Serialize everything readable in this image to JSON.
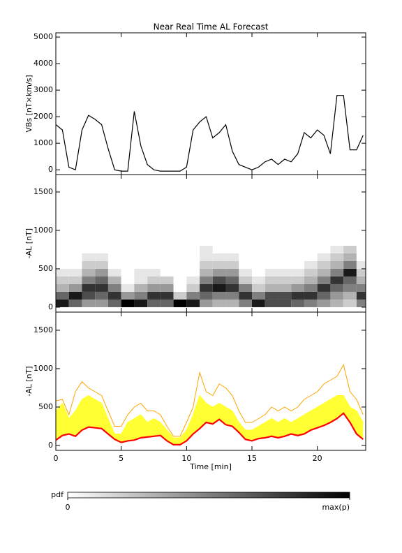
{
  "chart_data": [
    {
      "type": "line",
      "title": "Near Real Time AL Forecast",
      "ylabel": "VBs [nT×km/s]",
      "x": [
        0,
        0.5,
        1,
        1.5,
        2,
        2.5,
        3,
        3.5,
        4,
        4.5,
        5,
        5.5,
        6,
        6.5,
        7,
        7.5,
        8,
        8.5,
        9,
        9.5,
        10,
        10.5,
        11,
        11.5,
        12,
        12.5,
        13,
        13.5,
        14,
        14.5,
        15,
        15.5,
        16,
        16.5,
        17,
        17.5,
        18,
        18.5,
        19,
        19.5,
        20,
        20.5,
        21,
        21.5,
        22,
        22.5,
        23,
        23.5
      ],
      "series": [
        {
          "color": "#000000",
          "values": [
            1700,
            1500,
            100,
            0,
            1500,
            2050,
            1900,
            1700,
            800,
            0,
            -50,
            -50,
            2200,
            900,
            200,
            0,
            -50,
            -50,
            -50,
            -50,
            100,
            1500,
            1800,
            2000,
            1200,
            1400,
            1700,
            700,
            200,
            100,
            0,
            100,
            300,
            400,
            200,
            400,
            300,
            600,
            1400,
            1200,
            1500,
            1300,
            600,
            2800,
            2800,
            750,
            750,
            1300
          ]
        }
      ],
      "xlim": [
        0,
        23.7
      ],
      "xticks": [
        0,
        5,
        10,
        15,
        20
      ],
      "ylim": [
        -180,
        5160
      ],
      "yticks": [
        0,
        1000,
        2000,
        3000,
        4000,
        5000
      ]
    },
    {
      "type": "heatmap",
      "ylabel": "-AL [nT]",
      "x_bins": [
        0,
        1,
        2,
        3,
        4,
        5,
        6,
        7,
        8,
        9,
        10,
        11,
        12,
        13,
        14,
        15,
        16,
        17,
        18,
        19,
        20,
        21,
        22,
        23,
        24
      ],
      "y_bins": [
        0,
        100,
        200,
        300,
        400,
        500,
        600,
        700,
        800
      ],
      "values": [
        [
          0.9,
          0.6,
          0.3,
          0.2,
          0.1,
          0,
          0,
          0
        ],
        [
          0.6,
          0.9,
          0.4,
          0.2,
          0.1,
          0,
          0,
          0
        ],
        [
          0.4,
          0.7,
          0.8,
          0.5,
          0.3,
          0.2,
          0.1,
          0
        ],
        [
          0.4,
          0.6,
          0.8,
          0.6,
          0.4,
          0.2,
          0.1,
          0
        ],
        [
          0.6,
          0.8,
          0.5,
          0.3,
          0.1,
          0,
          0,
          0
        ],
        [
          1,
          0.4,
          0.1,
          0,
          0,
          0,
          0,
          0
        ],
        [
          0.9,
          0.5,
          0.3,
          0.1,
          0.1,
          0,
          0,
          0
        ],
        [
          0.6,
          0.8,
          0.4,
          0.2,
          0.1,
          0,
          0,
          0
        ],
        [
          0.6,
          0.8,
          0.4,
          0.2,
          0,
          0,
          0,
          0
        ],
        [
          1,
          0.2,
          0,
          0,
          0,
          0,
          0,
          0
        ],
        [
          0.9,
          0.5,
          0.2,
          0.1,
          0,
          0,
          0,
          0
        ],
        [
          0.4,
          0.6,
          0.8,
          0.5,
          0.3,
          0.2,
          0.1,
          0.1
        ],
        [
          0.3,
          0.5,
          0.9,
          0.7,
          0.4,
          0.2,
          0.1,
          0
        ],
        [
          0.3,
          0.5,
          0.8,
          0.6,
          0.4,
          0.2,
          0.1,
          0
        ],
        [
          0.5,
          0.8,
          0.5,
          0.2,
          0.1,
          0,
          0,
          0
        ],
        [
          0.9,
          0.5,
          0.2,
          0.1,
          0,
          0,
          0,
          0
        ],
        [
          0.7,
          0.7,
          0.3,
          0.2,
          0.1,
          0,
          0,
          0
        ],
        [
          0.7,
          0.7,
          0.3,
          0.2,
          0.1,
          0,
          0,
          0
        ],
        [
          0.6,
          0.8,
          0.4,
          0.2,
          0.1,
          0,
          0,
          0
        ],
        [
          0.5,
          0.8,
          0.5,
          0.3,
          0.2,
          0.1,
          0,
          0
        ],
        [
          0.4,
          0.6,
          0.8,
          0.5,
          0.3,
          0.2,
          0.1,
          0
        ],
        [
          0.3,
          0.4,
          0.6,
          0.8,
          0.5,
          0.3,
          0.2,
          0.1
        ],
        [
          0.2,
          0.3,
          0.5,
          0.6,
          0.9,
          0.5,
          0.3,
          0.2
        ],
        [
          0.5,
          0.8,
          0.5,
          0.3,
          0.2,
          0.1,
          0,
          0
        ]
      ],
      "xlim": [
        0,
        23.7
      ],
      "xticks": [
        0,
        5,
        10,
        15,
        20
      ],
      "ylim": [
        -64,
        1727
      ],
      "yticks": [
        0,
        500,
        1000,
        1500
      ],
      "colorbar": {
        "label": "pdf",
        "clim": [
          0,
          1
        ],
        "ticks": [
          0,
          {
            "value": 1,
            "label": "max(p)"
          }
        ]
      }
    },
    {
      "type": "band",
      "ylabel": "-AL [nT]",
      "xlabel": "Time [min]",
      "show_xtick_labels": true,
      "x": [
        0,
        0.5,
        1,
        1.5,
        2,
        2.5,
        3,
        3.5,
        4,
        4.5,
        5,
        5.5,
        6,
        6.5,
        7,
        7.5,
        8,
        8.5,
        9,
        9.5,
        10,
        10.5,
        11,
        11.5,
        12,
        12.5,
        13,
        13.5,
        14,
        14.5,
        15,
        15.5,
        16,
        16.5,
        17,
        17.5,
        18,
        18.5,
        19,
        19.5,
        20,
        20.5,
        21,
        21.5,
        22,
        22.5,
        23,
        23.5
      ],
      "series": [
        {
          "color": "#ffa500",
          "values": [
            580,
            600,
            400,
            700,
            830,
            750,
            700,
            650,
            450,
            250,
            250,
            400,
            500,
            550,
            450,
            450,
            400,
            250,
            120,
            120,
            300,
            500,
            950,
            700,
            650,
            800,
            750,
            650,
            450,
            300,
            300,
            350,
            400,
            500,
            450,
            500,
            450,
            500,
            600,
            650,
            700,
            800,
            850,
            900,
            1050,
            700,
            600,
            400
          ]
        },
        {
          "color": "#ffff33",
          "fill": true,
          "values": [
            450,
            550,
            350,
            450,
            600,
            650,
            600,
            550,
            350,
            150,
            150,
            300,
            350,
            400,
            300,
            350,
            300,
            200,
            100,
            100,
            200,
            400,
            650,
            550,
            500,
            550,
            500,
            450,
            300,
            200,
            200,
            250,
            300,
            350,
            300,
            350,
            300,
            350,
            400,
            450,
            500,
            550,
            600,
            650,
            650,
            500,
            450,
            300
          ]
        },
        {
          "color": "#ff0000",
          "values": [
            70,
            130,
            150,
            120,
            200,
            240,
            230,
            220,
            150,
            80,
            40,
            60,
            70,
            100,
            110,
            120,
            130,
            60,
            10,
            10,
            60,
            150,
            220,
            300,
            280,
            340,
            270,
            250,
            170,
            80,
            60,
            90,
            100,
            120,
            100,
            120,
            150,
            130,
            150,
            200,
            230,
            260,
            300,
            350,
            420,
            300,
            150,
            80
          ]
        }
      ],
      "xlim": [
        0,
        23.7
      ],
      "xticks": [
        0,
        5,
        10,
        15,
        20
      ],
      "ylim": [
        -64,
        1736
      ],
      "yticks": [
        0,
        500,
        1000,
        1500
      ]
    }
  ]
}
